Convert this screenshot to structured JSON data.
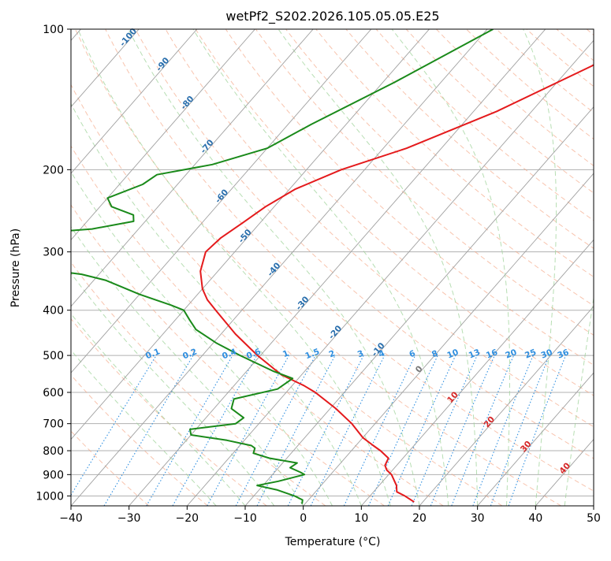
{
  "chart_data": {
    "type": "skew-t log-p",
    "title": "wetPf2_S202.2026.105.05.05.E25",
    "xlabel": "Temperature (°C)",
    "ylabel": "Pressure (hPa)",
    "xlim": [
      -40,
      50
    ],
    "ylim": [
      1050,
      100
    ],
    "y_scale": "log",
    "x_ticks": [
      "−40",
      "−30",
      "−20",
      "−10",
      "0",
      "10",
      "20",
      "30",
      "40",
      "50"
    ],
    "y_ticks": [
      "100",
      "200",
      "300",
      "400",
      "500",
      "600",
      "700",
      "800",
      "900",
      "1000"
    ],
    "grid": true,
    "colors": {
      "temperature": "#e41a1c",
      "dewpoint": "#1a8a1a",
      "dry_adiabat": "#f4a582",
      "moist_adiabat": "#9fd39a",
      "mixing_ratio": "#2f8fe0",
      "isotherm": "#888888",
      "label_dark_blue": "#2a6fad",
      "label_red": "#d62728"
    },
    "isotherm_labels_cold": [
      "-100",
      "-90",
      "-80",
      "-70",
      "-60",
      "-50",
      "-40",
      "-30",
      "-20",
      "-10"
    ],
    "isotherm_label_zero": "0",
    "isotherm_labels_warm": [
      "10",
      "20",
      "30",
      "40"
    ],
    "mixing_ratio_labels": [
      "0.1",
      "0.2",
      "0.4",
      "0.6",
      "1",
      "1.5",
      "2",
      "3",
      "4",
      "6",
      "8",
      "10",
      "13",
      "16",
      "20",
      "25",
      "30",
      "36"
    ],
    "series": [
      {
        "key": "temperature",
        "points": [
          [
            100,
            -11.0
          ],
          [
            120,
            -16.5
          ],
          [
            150,
            -26.0
          ],
          [
            180,
            -36.0
          ],
          [
            200,
            -44.0
          ],
          [
            220,
            -49.0
          ],
          [
            240,
            -51.5
          ],
          [
            260,
            -53.0
          ],
          [
            280,
            -54.5
          ],
          [
            300,
            -55.0
          ],
          [
            330,
            -53.0
          ],
          [
            360,
            -50.0
          ],
          [
            380,
            -47.5
          ],
          [
            400,
            -44.5
          ],
          [
            450,
            -37.5
          ],
          [
            500,
            -30.5
          ],
          [
            550,
            -23.5
          ],
          [
            580,
            -18.0
          ],
          [
            600,
            -15.0
          ],
          [
            650,
            -9.0
          ],
          [
            700,
            -4.0
          ],
          [
            750,
            0.0
          ],
          [
            780,
            3.0
          ],
          [
            800,
            5.0
          ],
          [
            830,
            7.5
          ],
          [
            860,
            8.0
          ],
          [
            880,
            9.0
          ],
          [
            900,
            10.5
          ],
          [
            950,
            13.0
          ],
          [
            980,
            14.0
          ],
          [
            1000,
            16.0
          ],
          [
            1030,
            18.5
          ]
        ]
      },
      {
        "key": "dewpoint",
        "points": [
          [
            100,
            -39.0
          ],
          [
            130,
            -48.0
          ],
          [
            160,
            -56.0
          ],
          [
            180,
            -60.0
          ],
          [
            195,
            -67.0
          ],
          [
            205,
            -75.0
          ],
          [
            215,
            -76.0
          ],
          [
            230,
            -80.0
          ],
          [
            240,
            -78.0
          ],
          [
            250,
            -73.0
          ],
          [
            258,
            -72.0
          ],
          [
            268,
            -78.0
          ],
          [
            278,
            -94.0
          ],
          [
            287,
            -110.0
          ],
          [
            300,
            -115.0
          ],
          [
            310,
            -102.0
          ],
          [
            325,
            -82.0
          ],
          [
            335,
            -73.0
          ],
          [
            345,
            -68.0
          ],
          [
            370,
            -60.0
          ],
          [
            390,
            -53.0
          ],
          [
            400,
            -50.0
          ],
          [
            420,
            -47.5
          ],
          [
            440,
            -45.0
          ],
          [
            470,
            -39.5
          ],
          [
            500,
            -33.5
          ],
          [
            540,
            -25.5
          ],
          [
            560,
            -21.0
          ],
          [
            590,
            -22.0
          ],
          [
            620,
            -28.0
          ],
          [
            650,
            -27.0
          ],
          [
            680,
            -23.5
          ],
          [
            700,
            -24.0
          ],
          [
            720,
            -31.0
          ],
          [
            740,
            -30.0
          ],
          [
            760,
            -23.0
          ],
          [
            780,
            -18.0
          ],
          [
            790,
            -17.0
          ],
          [
            810,
            -16.5
          ],
          [
            830,
            -13.0
          ],
          [
            850,
            -7.5
          ],
          [
            870,
            -8.0
          ],
          [
            890,
            -5.5
          ],
          [
            900,
            -4.5
          ],
          [
            930,
            -8.0
          ],
          [
            950,
            -11.0
          ],
          [
            970,
            -7.0
          ],
          [
            1000,
            -3.0
          ],
          [
            1020,
            -1.0
          ],
          [
            1040,
            -0.5
          ]
        ]
      }
    ]
  }
}
